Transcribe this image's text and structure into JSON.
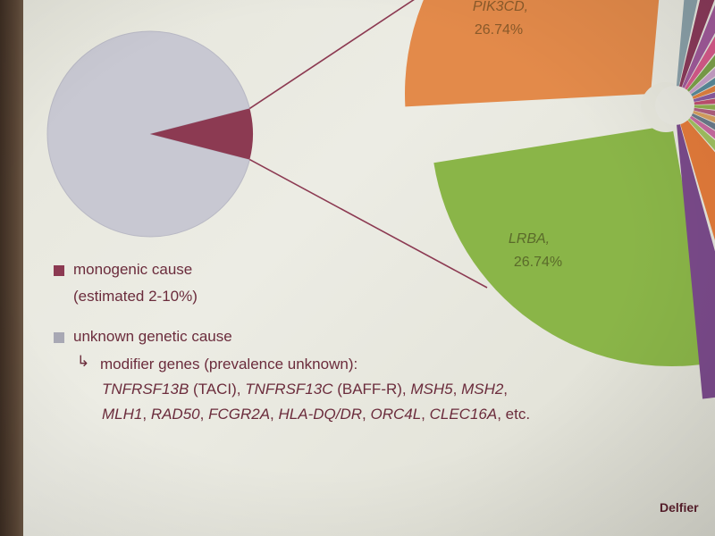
{
  "chart_data": [
    {
      "type": "pie",
      "categories": [
        "monogenic cause",
        "unknown genetic cause"
      ],
      "values": [
        8,
        92
      ],
      "colors": [
        "#8c3a52",
        "#c8c8d2"
      ]
    },
    {
      "type": "pie",
      "categories": [
        "PIK3CD",
        "LRBA"
      ],
      "values": [
        26.74,
        26.74
      ],
      "value_labels": [
        "26.74%",
        "26.74%"
      ],
      "label_prefix_visible": [
        "PIK3CD,",
        "LRBA,"
      ],
      "colors": [
        "#e38a4a",
        "#8ab548"
      ]
    }
  ],
  "legend": {
    "monogenic": {
      "label": "monogenic cause",
      "sub": "(estimated 2-10%)",
      "color": "#8c3a52"
    },
    "unknown": {
      "label": "unknown genetic cause",
      "color": "#a8a8b4"
    }
  },
  "modifier": {
    "arrow": "↳",
    "heading": "modifier genes (prevalence unknown):",
    "line1": [
      {
        "t": "TNFRSF13B",
        "i": true
      },
      {
        "t": " (TACI), ",
        "i": false
      },
      {
        "t": "TNFRSF13C",
        "i": true
      },
      {
        "t": " (BAFF-R), ",
        "i": false
      },
      {
        "t": "MSH5",
        "i": true
      },
      {
        "t": ", ",
        "i": false
      },
      {
        "t": "MSH2",
        "i": true
      },
      {
        "t": ",",
        "i": false
      }
    ],
    "line2": [
      {
        "t": "MLH1",
        "i": true
      },
      {
        "t": ", ",
        "i": false
      },
      {
        "t": "RAD50",
        "i": true
      },
      {
        "t": ", ",
        "i": false
      },
      {
        "t": "FCGR2A",
        "i": true
      },
      {
        "t": ", ",
        "i": false
      },
      {
        "t": "HLA-DQ/DR",
        "i": true
      },
      {
        "t": ", ",
        "i": false
      },
      {
        "t": "ORC4L",
        "i": true
      },
      {
        "t": ", ",
        "i": false
      },
      {
        "t": "CLEC16A",
        "i": true
      },
      {
        "t": ", etc.",
        "i": false
      }
    ]
  },
  "source": "Delfier",
  "colors": {
    "text": "#6b2c3c",
    "monogenic": "#8c3a52",
    "unknown_pie": "#c8c8d2",
    "pik3cd": "#e38a4a",
    "lrba": "#8ab548"
  }
}
